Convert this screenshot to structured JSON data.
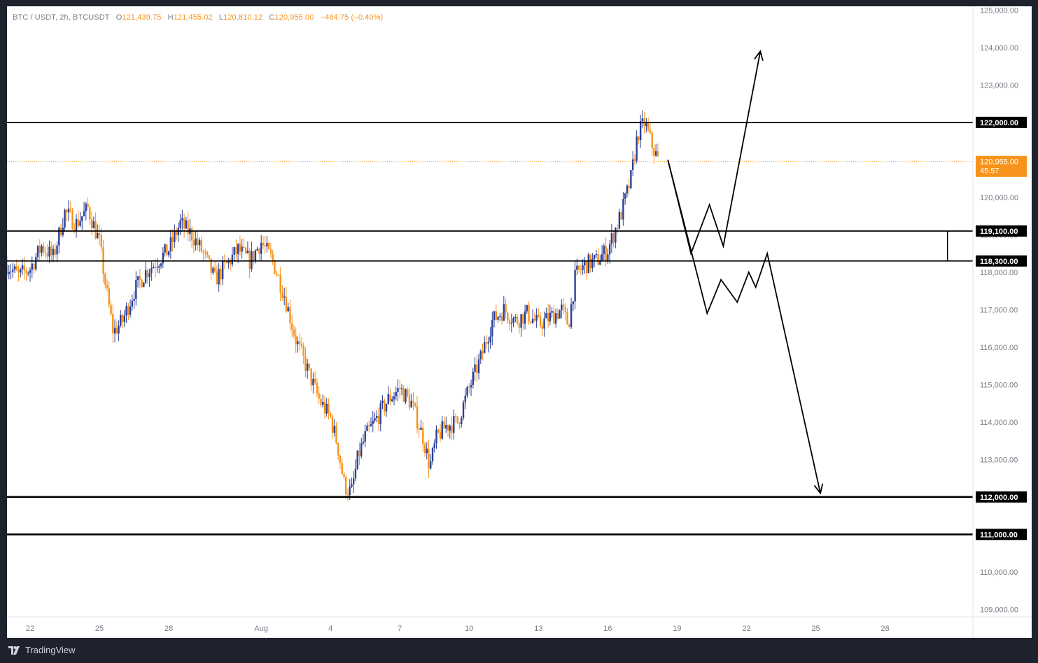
{
  "legend": {
    "symbol": "BTC / USDT, 2h, BTCUSDT",
    "open_label": "O",
    "open": "121,439.75",
    "high_label": "H",
    "high": "121,455.02",
    "low_label": "L",
    "low": "120,810.12",
    "close_label": "C",
    "close": "120,955.00",
    "change": "−484.75 (−0.40%)"
  },
  "footer": {
    "brand": "TradingView",
    "logo_icon": "tradingview-logo-icon"
  },
  "colors": {
    "up": "#2a3f9a",
    "down": "#f7931a",
    "level_line": "#000000",
    "current_price": "#f7931a",
    "axis_text": "#787b86"
  },
  "chart_data": {
    "type": "candlestick",
    "y_axis": {
      "ticks": [
        "109,000.00",
        "110,000.00",
        "111,000.00",
        "112,000.00",
        "113,000.00",
        "114,000.00",
        "115,000.00",
        "116,000.00",
        "117,000.00",
        "118,000.00",
        "119,000.00",
        "120,000.00",
        "121,000.00",
        "122,000.00",
        "123,000.00",
        "124,000.00",
        "125,000.00"
      ],
      "tick_values": [
        109000,
        110000,
        111000,
        112000,
        113000,
        114000,
        115000,
        116000,
        117000,
        118000,
        119000,
        120000,
        121000,
        122000,
        123000,
        124000,
        125000
      ],
      "range": [
        108800,
        125100
      ]
    },
    "x_axis": {
      "ticks": [
        "22",
        "25",
        "28",
        "Aug",
        "4",
        "7",
        "10",
        "13",
        "16",
        "19",
        "22",
        "25",
        "28"
      ],
      "tick_days": [
        1,
        4,
        7,
        11,
        14,
        17,
        20,
        23,
        26,
        29,
        32,
        35,
        38
      ],
      "range_days": [
        0,
        41.8
      ]
    },
    "horizontal_levels": [
      {
        "value": 122000,
        "label": "122,000.00"
      },
      {
        "value": 119100,
        "label": "119,100.00"
      },
      {
        "value": 118300,
        "label": "118,300.00"
      },
      {
        "value": 112000,
        "label": "112,000.00"
      },
      {
        "value": 111000,
        "label": "111,000.00"
      }
    ],
    "current_price": {
      "value": 120955,
      "label": "120,955.00",
      "countdown": "45:57"
    },
    "price_path": [
      [
        0,
        118200
      ],
      [
        0.5,
        117900
      ],
      [
        1,
        118100
      ],
      [
        1.5,
        118700
      ],
      [
        2,
        118400
      ],
      [
        2.5,
        119600
      ],
      [
        3,
        119300
      ],
      [
        3.5,
        119700
      ],
      [
        4,
        118800
      ],
      [
        4.3,
        117500
      ],
      [
        4.6,
        116400
      ],
      [
        5,
        116700
      ],
      [
        5.5,
        117500
      ],
      [
        6,
        118000
      ],
      [
        6.5,
        118300
      ],
      [
        7,
        118600
      ],
      [
        7.5,
        119300
      ],
      [
        8,
        119000
      ],
      [
        8.5,
        118500
      ],
      [
        9,
        117800
      ],
      [
        9.5,
        118200
      ],
      [
        10,
        118600
      ],
      [
        10.5,
        118300
      ],
      [
        11,
        118800
      ],
      [
        11.5,
        118300
      ],
      [
        12,
        117400
      ],
      [
        12.5,
        116200
      ],
      [
        13,
        115400
      ],
      [
        13.5,
        114600
      ],
      [
        14,
        114100
      ],
      [
        14.3,
        113400
      ],
      [
        14.6,
        112300
      ],
      [
        14.9,
        112100
      ],
      [
        15.2,
        113100
      ],
      [
        15.5,
        113600
      ],
      [
        16,
        114100
      ],
      [
        16.5,
        114600
      ],
      [
        17,
        114900
      ],
      [
        17.5,
        114500
      ],
      [
        18,
        113600
      ],
      [
        18.3,
        112800
      ],
      [
        18.6,
        113600
      ],
      [
        19,
        113900
      ],
      [
        19.5,
        114000
      ],
      [
        20,
        114900
      ],
      [
        20.5,
        115700
      ],
      [
        21,
        116700
      ],
      [
        21.5,
        117000
      ],
      [
        22,
        116700
      ],
      [
        22.5,
        116900
      ],
      [
        23,
        116600
      ],
      [
        23.5,
        116800
      ],
      [
        24,
        117000
      ],
      [
        24.3,
        116600
      ],
      [
        24.6,
        117900
      ],
      [
        25,
        118200
      ],
      [
        25.5,
        118300
      ],
      [
        26,
        118600
      ],
      [
        26.3,
        119100
      ],
      [
        26.6,
        119600
      ],
      [
        27,
        120500
      ],
      [
        27.3,
        121700
      ],
      [
        27.6,
        122000
      ],
      [
        27.9,
        121400
      ],
      [
        28.2,
        120955
      ]
    ],
    "projection_paths": {
      "bullish": [
        [
          28.6,
          121000
        ],
        [
          29.6,
          118500
        ],
        [
          30.4,
          119800
        ],
        [
          31,
          118700
        ],
        [
          32.6,
          123900
        ]
      ],
      "bearish": [
        [
          28.6,
          121000
        ],
        [
          30.3,
          116900
        ],
        [
          30.9,
          117800
        ],
        [
          31.6,
          117200
        ],
        [
          32.1,
          118000
        ],
        [
          32.4,
          117600
        ],
        [
          32.9,
          118500
        ],
        [
          35.2,
          112100
        ]
      ]
    },
    "range_box": {
      "from_day": 29.4,
      "to_day": 40.7,
      "top": 119100,
      "bottom": 118300
    }
  }
}
